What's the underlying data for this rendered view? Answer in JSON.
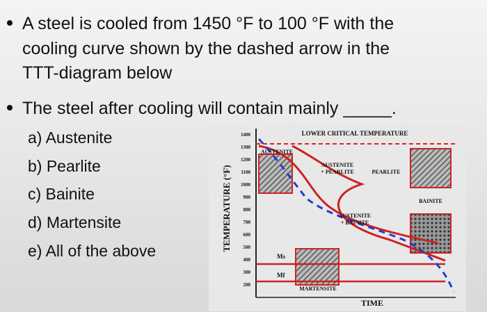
{
  "question": {
    "bullet_1": [
      "A steel is cooled from 1450 °F to 100 °F with the",
      "cooling curve shown by the dashed arrow in the",
      "TTT-diagram below"
    ],
    "bullet_2": "The steel after cooling will contain mainly _____.",
    "options": [
      "a) Austenite",
      "b) Pearlite",
      "c) Bainite",
      "d) Martensite",
      "e) All of the above"
    ]
  },
  "diagram": {
    "y_axis_label": "TEMPERATURE (°F)",
    "x_axis_label": "TIME",
    "y_ticks": [
      "1400",
      "1300",
      "1200",
      "1100",
      "1000",
      "900",
      "800",
      "700",
      "600",
      "500",
      "400",
      "300",
      "200"
    ],
    "lower_critical": "LOWER CRITICAL TEMPERATURE",
    "austenite": "AUSTENITE",
    "austenite_pearlite": [
      "AUSTENITE",
      "+ PEARLITE"
    ],
    "pearlite": "PEARLITE",
    "bainite": "BAINITE",
    "austenite_bainite": [
      "AUSTENITE",
      "+ BAINITE"
    ],
    "ms": "Ms",
    "mf": "Mf",
    "martensite": "MARTENSITE"
  }
}
